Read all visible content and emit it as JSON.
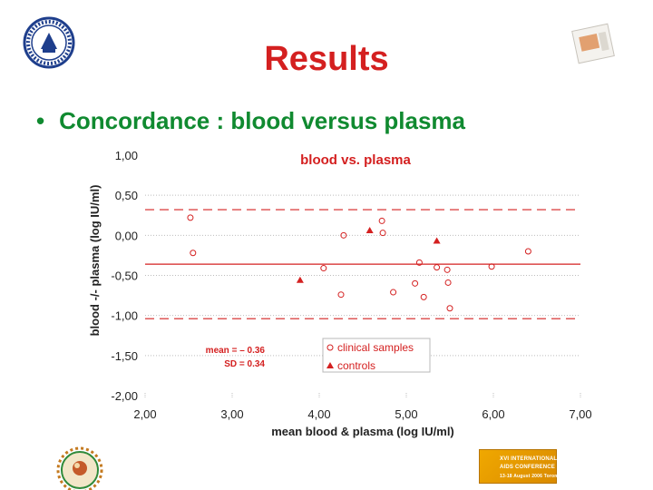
{
  "slide": {
    "title": "Results",
    "bullet": "Concordance : blood versus plasma"
  },
  "branding": {
    "conference_line1": "XVI INTERNATIONAL",
    "conference_line2": "AIDS CONFERENCE",
    "conference_line3": "13-18 August 2006 Toronto"
  },
  "colors": {
    "title": "#d42020",
    "bullet": "#108a30",
    "series": "#d42020"
  },
  "chart_data": {
    "type": "scatter",
    "title": "blood vs. plasma",
    "xlabel": "mean blood & plasma (log IU/ml)",
    "ylabel": "blood -/- plasma (log IU/ml)",
    "xlim": [
      2.0,
      7.0
    ],
    "ylim": [
      -2.0,
      1.0
    ],
    "xticks": [
      "2,00",
      "3,00",
      "4,00",
      "5,00",
      "6,00",
      "7,00"
    ],
    "yticks": [
      "1,00",
      "0,50",
      "0,00",
      "-0,50",
      "-1,00",
      "-1,50",
      "-2,00"
    ],
    "xtick_values": [
      2,
      3,
      4,
      5,
      6,
      7
    ],
    "ytick_values": [
      1.0,
      0.5,
      0.0,
      -0.5,
      -1.0,
      -1.5,
      -2.0
    ],
    "mean_line": -0.36,
    "sd_lines": [
      0.32,
      -1.04
    ],
    "stats": {
      "mean_label": "mean = – 0.36",
      "sd_label": "SD = 0.34"
    },
    "series": [
      {
        "name": "clinical samples",
        "marker": "circle",
        "points": [
          [
            2.52,
            0.22
          ],
          [
            2.55,
            -0.22
          ],
          [
            4.05,
            -0.41
          ],
          [
            4.25,
            -0.74
          ],
          [
            4.28,
            0.0
          ],
          [
            4.72,
            0.18
          ],
          [
            4.73,
            0.03
          ],
          [
            4.85,
            -0.71
          ],
          [
            5.1,
            -0.6
          ],
          [
            5.15,
            -0.34
          ],
          [
            5.2,
            -0.77
          ],
          [
            5.35,
            -0.4
          ],
          [
            5.47,
            -0.43
          ],
          [
            5.48,
            -0.59
          ],
          [
            5.5,
            -0.91
          ],
          [
            5.98,
            -0.39
          ],
          [
            6.4,
            -0.2
          ]
        ]
      },
      {
        "name": "controls",
        "marker": "triangle",
        "points": [
          [
            3.78,
            -0.56
          ],
          [
            4.58,
            0.06
          ],
          [
            5.35,
            -0.07
          ]
        ]
      }
    ],
    "legend": [
      "clinical samples",
      "controls"
    ]
  }
}
